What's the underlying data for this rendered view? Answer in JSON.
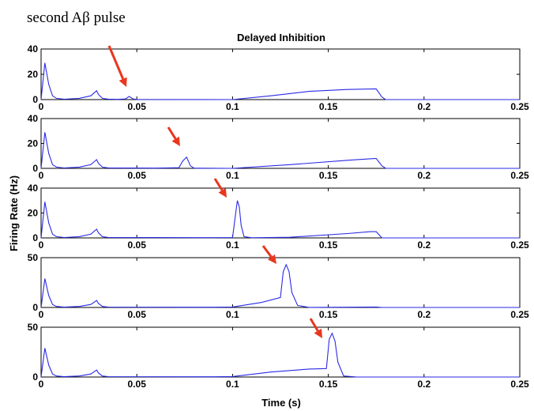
{
  "chart_data": [
    {
      "type": "line",
      "title": "Delayed Inhibition",
      "xlim": [
        0,
        0.25
      ],
      "ylim": [
        0,
        40
      ],
      "yticks": [
        0,
        20,
        40
      ],
      "xticks": [
        "0",
        "0.05",
        "0.1",
        "0.15",
        "0.2",
        "0.25"
      ],
      "series": [
        {
          "x": [
            0,
            0.002,
            0.004,
            0.006,
            0.008,
            0.012,
            0.02,
            0.026,
            0.029,
            0.03,
            0.032,
            0.035,
            0.04,
            0.044,
            0.046,
            0.048,
            0.05,
            0.1,
            0.12,
            0.14,
            0.16,
            0.17,
            0.175,
            0.178,
            0.18,
            0.25
          ],
          "y": [
            0,
            29,
            12,
            3,
            1,
            0.3,
            1,
            3,
            7,
            4,
            1,
            0.4,
            0.2,
            0.5,
            2.5,
            0.5,
            0.1,
            0,
            3,
            6.5,
            8,
            8.3,
            8.5,
            2,
            0,
            0
          ]
        }
      ]
    },
    {
      "type": "line",
      "xlim": [
        0,
        0.25
      ],
      "ylim": [
        0,
        40
      ],
      "yticks": [
        0,
        20,
        40
      ],
      "xticks": [
        "0",
        "0.05",
        "0.1",
        "0.15",
        "0.2",
        "0.25"
      ],
      "series": [
        {
          "x": [
            0,
            0.002,
            0.004,
            0.006,
            0.008,
            0.012,
            0.02,
            0.026,
            0.029,
            0.03,
            0.032,
            0.035,
            0.06,
            0.072,
            0.074,
            0.076,
            0.078,
            0.08,
            0.1,
            0.13,
            0.16,
            0.17,
            0.175,
            0.178,
            0.18,
            0.25
          ],
          "y": [
            0,
            29,
            12,
            3,
            1,
            0.3,
            1,
            3,
            7,
            4,
            1,
            0.4,
            0.2,
            0.5,
            6,
            9,
            2,
            0.1,
            0,
            3,
            6.5,
            7.5,
            8,
            2,
            0,
            0
          ]
        }
      ]
    },
    {
      "type": "line",
      "xlim": [
        0,
        0.25
      ],
      "ylim": [
        0,
        40
      ],
      "yticks": [
        0,
        20,
        40
      ],
      "xticks": [
        "0",
        "0.05",
        "0.1",
        "0.15",
        "0.2",
        "0.25"
      ],
      "series": [
        {
          "x": [
            0,
            0.002,
            0.004,
            0.006,
            0.008,
            0.012,
            0.02,
            0.026,
            0.029,
            0.03,
            0.032,
            0.035,
            0.09,
            0.1,
            0.1015,
            0.1025,
            0.1035,
            0.1045,
            0.106,
            0.11,
            0.13,
            0.16,
            0.172,
            0.175,
            0.178,
            0.25
          ],
          "y": [
            0,
            29,
            12,
            3,
            1,
            0.3,
            1,
            3,
            7,
            4,
            1,
            0.4,
            0.2,
            0.3,
            18,
            30,
            25,
            10,
            1,
            0.1,
            0.5,
            3.5,
            5,
            5,
            0,
            0
          ]
        }
      ]
    },
    {
      "type": "line",
      "xlim": [
        0,
        0.25
      ],
      "ylim": [
        0,
        50
      ],
      "yticks": [
        0,
        50
      ],
      "xticks": [
        "0",
        "0.05",
        "0.1",
        "0.15",
        "0.2",
        "0.25"
      ],
      "series": [
        {
          "x": [
            0,
            0.002,
            0.004,
            0.006,
            0.008,
            0.012,
            0.02,
            0.026,
            0.029,
            0.03,
            0.032,
            0.035,
            0.09,
            0.1,
            0.115,
            0.125,
            0.1265,
            0.128,
            0.1295,
            0.131,
            0.134,
            0.14,
            0.175,
            0.178,
            0.25
          ],
          "y": [
            0,
            29,
            12,
            3,
            1,
            0.3,
            1,
            3,
            7,
            4,
            1,
            0.4,
            0.2,
            0.5,
            5,
            10,
            36,
            43,
            36,
            15,
            2,
            0.1,
            0.5,
            0,
            0
          ]
        }
      ]
    },
    {
      "type": "line",
      "xlim": [
        0,
        0.25
      ],
      "ylim": [
        0,
        50
      ],
      "yticks": [
        0,
        50
      ],
      "xticks": [
        "0",
        "0.05",
        "0.1",
        "0.15",
        "0.2",
        "0.25"
      ],
      "xlabel": "Time (s)",
      "series": [
        {
          "x": [
            0,
            0.002,
            0.004,
            0.006,
            0.008,
            0.012,
            0.02,
            0.026,
            0.029,
            0.03,
            0.032,
            0.035,
            0.09,
            0.1,
            0.12,
            0.14,
            0.149,
            0.1505,
            0.152,
            0.1535,
            0.155,
            0.158,
            0.165,
            0.25
          ],
          "y": [
            0,
            29,
            12,
            3,
            1,
            0.3,
            1,
            3,
            7,
            4,
            1,
            0.4,
            0.2,
            0.5,
            5,
            8,
            8.5,
            38,
            44,
            36,
            15,
            1,
            0,
            0
          ]
        }
      ]
    }
  ],
  "figure": {
    "annotation": "second Aβ pulse",
    "ylabel": "Firing Rate (Hz)",
    "arrow_color": "#e8371f",
    "line_color": "#2a2ae6"
  }
}
